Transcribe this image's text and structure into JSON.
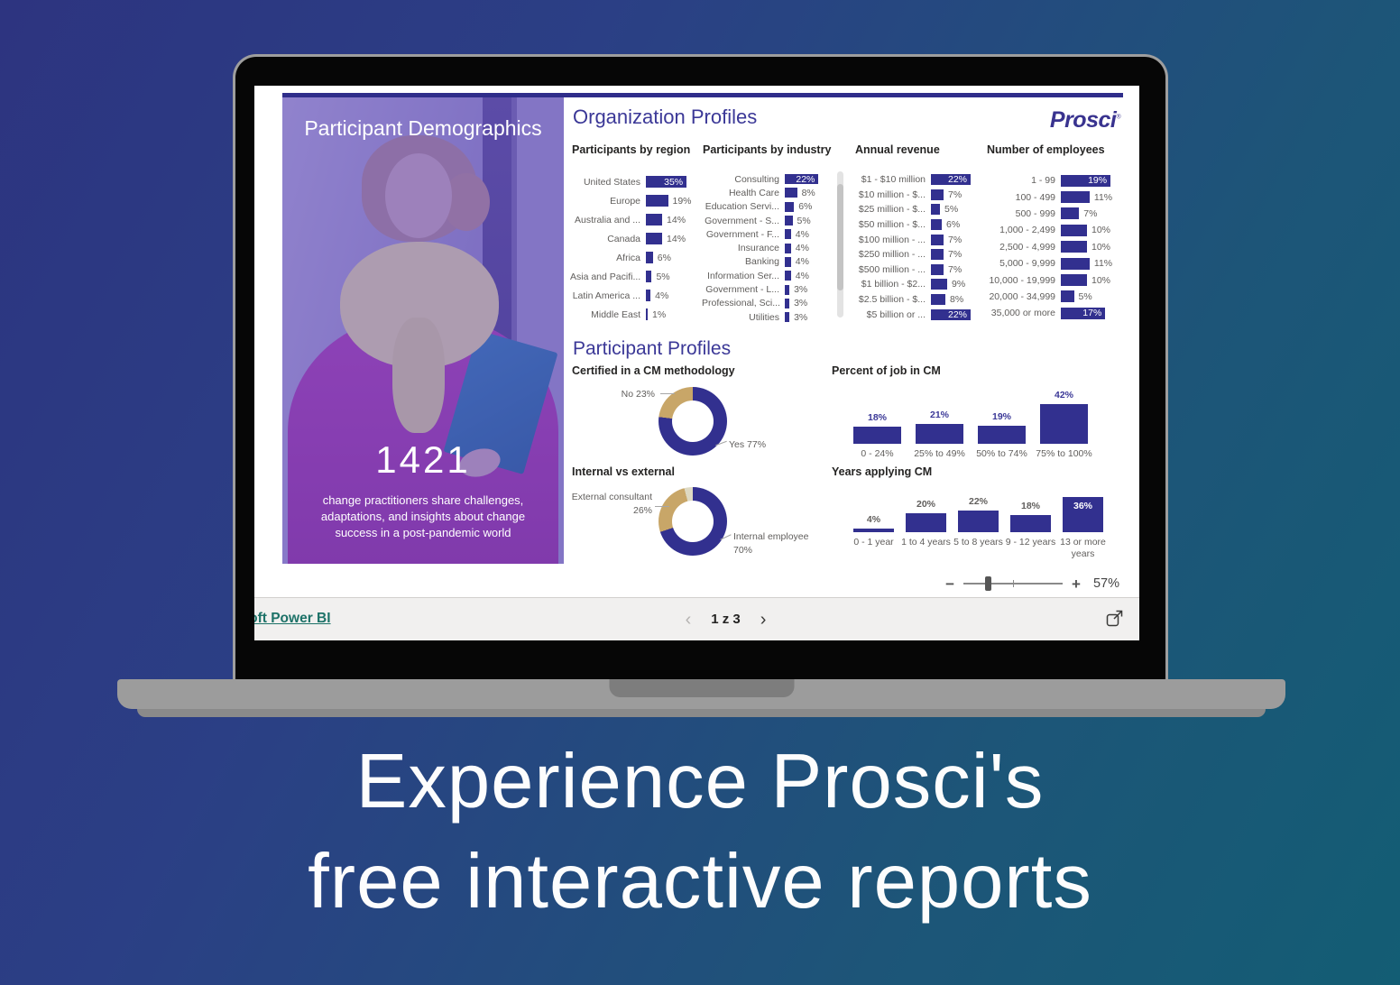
{
  "banner": {
    "line1": "Experience Prosci's",
    "line2": "free interactive reports"
  },
  "report": {
    "brand": "Prosci",
    "org_title": "Organization Profiles",
    "profiles_title": "Participant Profiles",
    "left_panel": {
      "title": "Participant Demographics",
      "stat": "1421",
      "description": "change practitioners share challenges, adaptations, and insights about change success in a post-pandemic world"
    }
  },
  "chart_data": [
    {
      "id": "region",
      "type": "bar",
      "title": "Participants by region",
      "categories": [
        "United States",
        "Europe",
        "Australia and ...",
        "Canada",
        "Africa",
        "Asia and Pacifi...",
        "Latin America ...",
        "Middle East"
      ],
      "values": [
        35,
        19,
        14,
        14,
        6,
        5,
        4,
        1
      ],
      "unit": "%",
      "xlim": [
        0,
        35
      ]
    },
    {
      "id": "industry",
      "type": "bar",
      "title": "Participants by industry",
      "categories": [
        "Consulting",
        "Health Care",
        "Education Servi...",
        "Government - S...",
        "Government - F...",
        "Insurance",
        "Banking",
        "Information Ser...",
        "Government - L...",
        "Professional, Sci...",
        "Utilities"
      ],
      "values": [
        22,
        8,
        6,
        5,
        4,
        4,
        4,
        4,
        3,
        3,
        3
      ],
      "unit": "%",
      "xlim": [
        0,
        22
      ],
      "scrollbar": true
    },
    {
      "id": "revenue",
      "type": "bar",
      "title": "Annual revenue",
      "categories": [
        "$1 - $10 million",
        "$10 million - $...",
        "$25 million - $...",
        "$50 million - $...",
        "$100 million - ...",
        "$250 million - ...",
        "$500 million - ...",
        "$1 billion - $2...",
        "$2.5 billion - $...",
        "$5 billion or ..."
      ],
      "values": [
        22,
        7,
        5,
        6,
        7,
        7,
        7,
        9,
        8,
        22
      ],
      "unit": "%",
      "xlim": [
        0,
        22
      ]
    },
    {
      "id": "employees",
      "type": "bar",
      "title": "Number of employees",
      "categories": [
        "1 - 99",
        "100 - 499",
        "500 - 999",
        "1,000 - 2,499",
        "2,500 - 4,999",
        "5,000 - 9,999",
        "10,000 - 19,999",
        "20,000 - 34,999",
        "35,000 or more"
      ],
      "values": [
        19,
        11,
        7,
        10,
        10,
        11,
        10,
        5,
        17
      ],
      "unit": "%",
      "xlim": [
        0,
        19
      ]
    },
    {
      "id": "certified",
      "type": "pie",
      "title": "Certified in a CM methodology",
      "slices": [
        {
          "label": "Yes",
          "value": 77
        },
        {
          "label": "No",
          "value": 23
        }
      ],
      "colors": [
        "#32308f",
        "#c8a668"
      ],
      "callouts": [
        "No 23%",
        "Yes 77%"
      ]
    },
    {
      "id": "internal",
      "type": "pie",
      "title": "Internal vs external",
      "slices": [
        {
          "label": "Internal employee",
          "value": 70
        },
        {
          "label": "External consultant",
          "value": 26
        },
        {
          "label": "Other",
          "value": 4
        }
      ],
      "colors": [
        "#32308f",
        "#c8a668",
        "#ded9c3"
      ],
      "callouts": [
        "External consultant",
        "26%",
        "Internal employee",
        "70%"
      ]
    },
    {
      "id": "job",
      "type": "bar",
      "title": "Percent of job in CM",
      "categories": [
        "0 - 24%",
        "25% to 49%",
        "50% to 74%",
        "75% to 100%"
      ],
      "values": [
        18,
        21,
        19,
        42
      ],
      "unit": "%",
      "ylim": [
        0,
        42
      ],
      "orientation": "vertical"
    },
    {
      "id": "years",
      "type": "bar",
      "title": "Years applying CM",
      "categories": [
        "0 - 1 year",
        "1 to 4 years",
        "5 to 8 years",
        "9 - 12 years",
        "13 or more years"
      ],
      "values": [
        4,
        20,
        22,
        18,
        36
      ],
      "unit": "%",
      "ylim": [
        0,
        36
      ],
      "orientation": "vertical"
    }
  ],
  "statusbar": {
    "zoom_out": "−",
    "zoom_in": "+",
    "zoom_level": "57%",
    "link_label": "rosoft Power BI",
    "prev": "‹",
    "page_indicator": "1 z 3",
    "next": "›"
  },
  "colors": {
    "accent": "#32308f",
    "tan": "#c8a668",
    "pale": "#ded9c3",
    "title_purple": "#3b3897",
    "link_teal": "#1d7268"
  }
}
